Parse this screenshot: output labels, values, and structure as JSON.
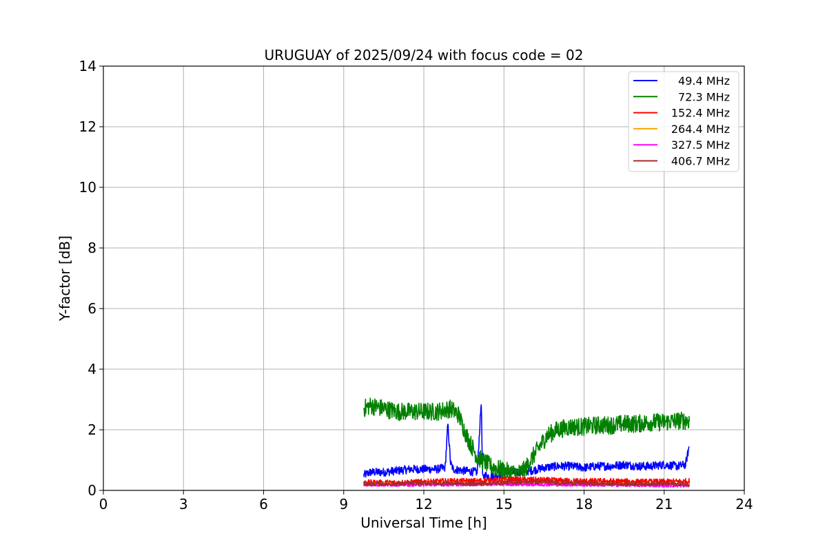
{
  "chart_data": {
    "type": "line",
    "title": "URUGUAY of 2025/09/24 with focus code = 02",
    "xlabel": "Universal Time [h]",
    "ylabel": "Y-factor [dB]",
    "xlim": [
      0,
      24
    ],
    "ylim": [
      0,
      14
    ],
    "xticks": [
      0,
      3,
      6,
      9,
      12,
      15,
      18,
      21,
      24
    ],
    "yticks": [
      0,
      2,
      4,
      6,
      8,
      10,
      12,
      14
    ],
    "grid": true,
    "legend_position": "top-right",
    "series": [
      {
        "name": " 49.4 MHz",
        "color": "#0000ff",
        "x": [
          9.75,
          10.0,
          10.5,
          11.0,
          11.5,
          12.0,
          12.5,
          12.8,
          12.9,
          13.0,
          13.1,
          13.5,
          14.0,
          14.15,
          14.2,
          14.3,
          14.5,
          15.0,
          15.5,
          16.0,
          16.5,
          17.0,
          17.5,
          18.0,
          18.5,
          19.0,
          19.5,
          20.0,
          20.5,
          21.0,
          21.5,
          21.8,
          21.95
        ],
        "y": [
          0.5,
          0.6,
          0.6,
          0.65,
          0.7,
          0.7,
          0.7,
          0.75,
          2.2,
          0.9,
          0.7,
          0.65,
          0.6,
          2.95,
          0.4,
          0.5,
          0.45,
          0.55,
          0.6,
          0.65,
          0.75,
          0.8,
          0.8,
          0.75,
          0.8,
          0.8,
          0.85,
          0.8,
          0.8,
          0.85,
          0.8,
          0.85,
          1.5
        ],
        "noise": 0.14
      },
      {
        "name": " 72.3 MHz",
        "color": "#008000",
        "x": [
          9.75,
          10.0,
          10.5,
          11.0,
          11.5,
          12.0,
          12.5,
          13.0,
          13.3,
          13.6,
          14.0,
          14.5,
          15.0,
          15.5,
          15.8,
          16.0,
          16.3,
          16.6,
          17.0,
          17.5,
          18.0,
          18.5,
          19.0,
          19.5,
          20.0,
          20.5,
          21.0,
          21.5,
          21.95
        ],
        "y": [
          2.7,
          2.8,
          2.7,
          2.6,
          2.6,
          2.6,
          2.6,
          2.7,
          2.5,
          1.8,
          1.1,
          0.8,
          0.65,
          0.55,
          0.7,
          1.0,
          1.4,
          1.8,
          2.0,
          2.1,
          2.1,
          2.15,
          2.15,
          2.2,
          2.2,
          2.25,
          2.25,
          2.3,
          2.3
        ],
        "noise": 0.3
      },
      {
        "name": "152.4 MHz",
        "color": "#ff0000",
        "x": [
          9.75,
          11.0,
          12.0,
          13.0,
          14.0,
          15.0,
          16.0,
          17.0,
          18.0,
          19.0,
          20.0,
          21.0,
          21.95
        ],
        "y": [
          0.25,
          0.25,
          0.28,
          0.3,
          0.3,
          0.35,
          0.35,
          0.32,
          0.3,
          0.3,
          0.28,
          0.28,
          0.3
        ],
        "noise": 0.1
      },
      {
        "name": "264.4 MHz",
        "color": "#ffa500",
        "x": [
          9.75,
          12.0,
          15.0,
          18.0,
          21.95
        ],
        "y": [
          0.22,
          0.22,
          0.25,
          0.22,
          0.2
        ],
        "noise": 0.05
      },
      {
        "name": "327.5 MHz",
        "color": "#ff00ff",
        "x": [
          9.75,
          12.0,
          15.0,
          18.0,
          21.95
        ],
        "y": [
          0.18,
          0.18,
          0.2,
          0.18,
          0.15
        ],
        "noise": 0.05
      },
      {
        "name": "406.7 MHz",
        "color": "#a52a2a",
        "x": [
          9.75,
          11.0,
          12.0,
          13.0,
          14.0,
          15.0,
          16.0,
          17.0,
          18.0,
          19.0,
          20.0,
          21.0,
          21.95
        ],
        "y": [
          0.22,
          0.22,
          0.24,
          0.24,
          0.22,
          0.26,
          0.28,
          0.26,
          0.24,
          0.22,
          0.22,
          0.22,
          0.2
        ],
        "noise": 0.07
      }
    ]
  }
}
